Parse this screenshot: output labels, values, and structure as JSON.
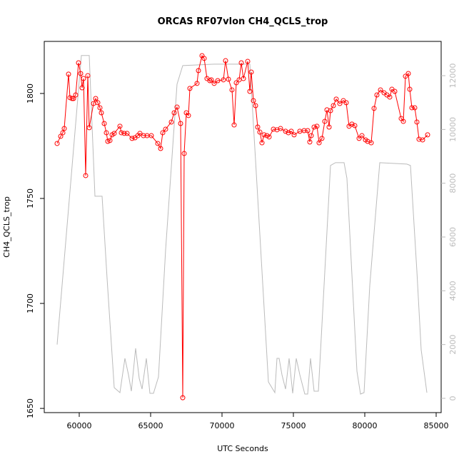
{
  "chart_data": {
    "type": "line",
    "title": "ORCAS RF07vlon CH4_QCLS_trop",
    "xlabel": "UTC Seconds",
    "ylabel": "CH4_QCLS_trop",
    "xlim": [
      57550,
      85350
    ],
    "xticks": [
      60000,
      65000,
      70000,
      75000,
      80000,
      85000
    ],
    "ylim": [
      1648,
      1824.8
    ],
    "yticks": [
      1650,
      1700,
      1750,
      1800
    ],
    "y2lim": [
      -531,
      13275
    ],
    "y2ticks": [
      0,
      2000,
      4000,
      6000,
      8000,
      10000,
      12000
    ],
    "y2color": "#bbbbbb",
    "series": [
      {
        "color": "#ff0000",
        "markers": true,
        "x": [
          58450,
          58700,
          58850,
          58950,
          59250,
          59350,
          59500,
          59600,
          59750,
          59950,
          60100,
          60200,
          60300,
          60450,
          60600,
          60700,
          61000,
          61150,
          61300,
          61450,
          61550,
          61750,
          61900,
          62000,
          62150,
          62300,
          62450,
          62850,
          62950,
          63150,
          63350,
          63700,
          63900,
          64100,
          64250,
          64500,
          64750,
          65050,
          65500,
          65700,
          65850,
          66050,
          66450,
          66650,
          66850,
          67100,
          67250,
          67350,
          67500,
          67650,
          67750,
          68250,
          68350,
          68600,
          68750,
          68950,
          69150,
          69250,
          69450,
          69700,
          70100,
          70250,
          70450,
          70700,
          70850,
          71000,
          71200,
          71350,
          71500,
          71800,
          71950,
          72050,
          72200,
          72350,
          72500,
          72650,
          72800,
          72950,
          73150,
          73300,
          73600,
          73850,
          74100,
          74450,
          74650,
          74850,
          75050,
          75450,
          75750,
          76000,
          76150,
          76250,
          76450,
          76650,
          76800,
          77000,
          77200,
          77350,
          77500,
          77600,
          77800,
          78000,
          78250,
          78500,
          78700,
          78900,
          79100,
          79300,
          79600,
          79800,
          80050,
          80200,
          80450,
          80650,
          80850,
          81100,
          81350,
          81550,
          81750,
          81900,
          82100,
          82550,
          82700,
          82850,
          83050,
          83150,
          83300,
          83500,
          83650,
          83800,
          84050,
          84400
        ],
        "values": [
          1776.2,
          1779.6,
          1781.3,
          1783.3,
          1809.2,
          1798,
          1797.6,
          1797.6,
          1799.3,
          1814.6,
          1809.5,
          1802.7,
          1807.1,
          1760.9,
          1808.5,
          1783.7,
          1795.2,
          1797.6,
          1795.6,
          1793.2,
          1790.8,
          1785.7,
          1781.3,
          1777.2,
          1777.6,
          1780.3,
          1781,
          1784.4,
          1781.3,
          1781,
          1781,
          1778.6,
          1778.9,
          1779.9,
          1781,
          1779.9,
          1779.9,
          1779.9,
          1776.2,
          1773.8,
          1781.3,
          1783,
          1786.4,
          1790.8,
          1793.5,
          1785.7,
          1655.1,
          1771.4,
          1790.8,
          1789.5,
          1802.4,
          1804.8,
          1810.9,
          1818,
          1816.7,
          1807.1,
          1806.1,
          1806.5,
          1804.8,
          1806.1,
          1806.5,
          1815.6,
          1806.8,
          1801.7,
          1785,
          1805.1,
          1806.5,
          1814.6,
          1807.1,
          1815.3,
          1801,
          1810.2,
          1796.6,
          1794.2,
          1784,
          1781.6,
          1776.5,
          1780.3,
          1779.9,
          1779.3,
          1783,
          1782.7,
          1783.3,
          1782,
          1781.3,
          1782,
          1780.3,
          1782,
          1782.3,
          1782.3,
          1776.9,
          1779.9,
          1784,
          1784.4,
          1776.5,
          1778.6,
          1786.7,
          1792.2,
          1784,
          1791.8,
          1794.2,
          1797.3,
          1795.2,
          1796.6,
          1795.6,
          1784.4,
          1785.4,
          1784.7,
          1778.6,
          1779.9,
          1777.9,
          1777.2,
          1776.5,
          1792.9,
          1799.3,
          1801.7,
          1800.3,
          1799.3,
          1798.3,
          1802,
          1801,
          1788.1,
          1786.7,
          1808.2,
          1809.5,
          1802,
          1793.2,
          1793.2,
          1786.4,
          1778.2,
          1777.9,
          1780.3
        ]
      },
      {
        "color": "#bbbbbb",
        "axis": "y2",
        "markers": false,
        "x": [
          58450,
          60150,
          60700,
          61100,
          61600,
          61950,
          62450,
          62850,
          63200,
          63450,
          63650,
          63950,
          64200,
          64400,
          64700,
          64950,
          65200,
          65550,
          66050,
          66850,
          67250,
          69450,
          71950,
          72350,
          73250,
          73700,
          73850,
          74000,
          74200,
          74450,
          74700,
          74950,
          75200,
          75450,
          75800,
          76000,
          76200,
          76450,
          76750,
          77600,
          77950,
          78550,
          78750,
          79450,
          79700,
          79950,
          80350,
          81050,
          82950,
          83200,
          83650,
          83950,
          84350
        ],
        "values": [
          2000,
          12750,
          12750,
          7517,
          7517,
          4462,
          398,
          212,
          1487,
          876,
          266,
          1859,
          744,
          345,
          1487,
          186,
          186,
          797,
          5525,
          11687,
          12377,
          12430,
          12430,
          8845,
          611,
          212,
          1487,
          1487,
          876,
          345,
          1487,
          186,
          1487,
          876,
          159,
          159,
          1487,
          266,
          266,
          8659,
          8765,
          8765,
          8181,
          1009,
          159,
          212,
          4197,
          8765,
          8712,
          8659,
          4728,
          1806,
          212
        ]
      }
    ]
  }
}
